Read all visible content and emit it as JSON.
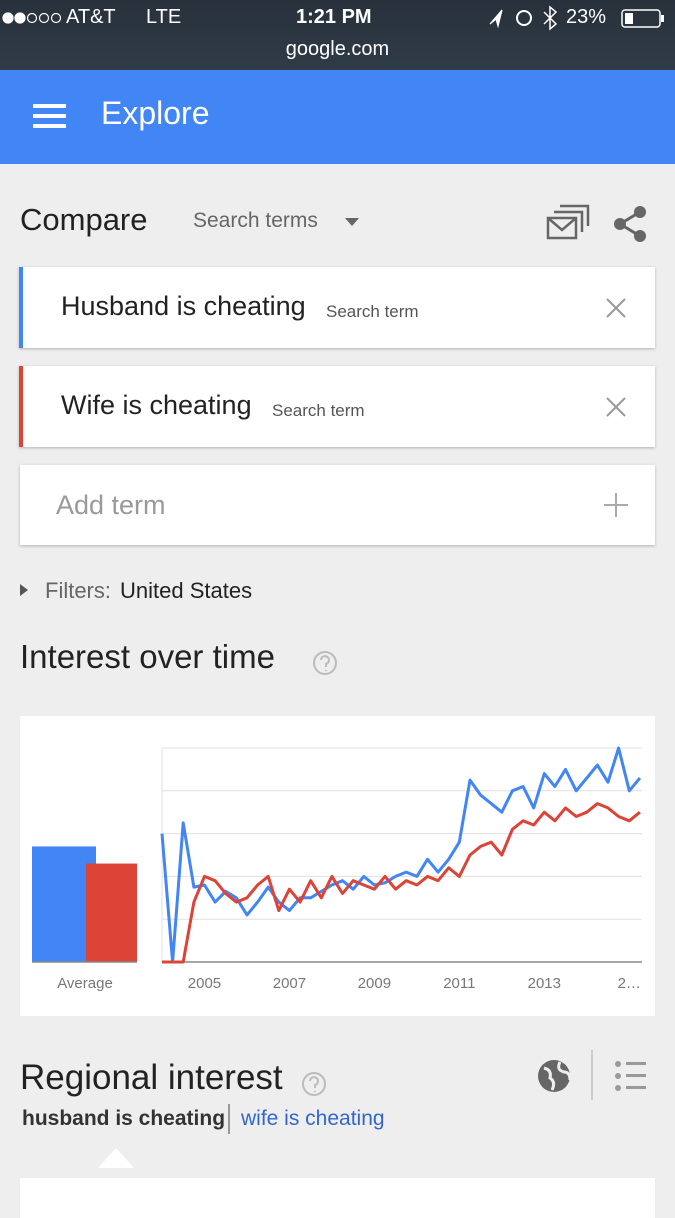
{
  "status_bar": {
    "carrier": "AT&T",
    "network": "LTE",
    "time": "1:21 PM",
    "battery": "23%",
    "url": "google.com"
  },
  "app_bar": {
    "title": "Explore"
  },
  "compare": {
    "title": "Compare",
    "dropdown": "Search terms",
    "terms": [
      {
        "label": "Husband is cheating",
        "hint": "Search term",
        "color": "#4285f4"
      },
      {
        "label": "Wife is cheating",
        "hint": "Search term",
        "color": "#db4437"
      }
    ],
    "add_term": "Add term"
  },
  "filters": {
    "label": "Filters:",
    "value": "United States"
  },
  "interest": {
    "title": "Interest over time"
  },
  "chart_data": {
    "type": "line",
    "average_label": "Average",
    "averages": [
      54,
      46
    ],
    "x": [
      2004.0,
      2004.25,
      2004.5,
      2004.75,
      2005.0,
      2005.25,
      2005.5,
      2005.75,
      2006.0,
      2006.25,
      2006.5,
      2006.75,
      2007.0,
      2007.25,
      2007.5,
      2007.75,
      2008.0,
      2008.25,
      2008.5,
      2008.75,
      2009.0,
      2009.25,
      2009.5,
      2009.75,
      2010.0,
      2010.25,
      2010.5,
      2010.75,
      2011.0,
      2011.25,
      2011.5,
      2011.75,
      2012.0,
      2012.25,
      2012.5,
      2012.75,
      2013.0,
      2013.25,
      2013.5,
      2013.75,
      2014.0,
      2014.25,
      2014.5,
      2014.75,
      2015.0,
      2015.25
    ],
    "series": [
      {
        "name": "Husband is cheating",
        "color": "#4285f4",
        "values": [
          60,
          0,
          65,
          35,
          36,
          28,
          33,
          30,
          22,
          28,
          35,
          28,
          24,
          30,
          30,
          33,
          36,
          38,
          34,
          40,
          36,
          37,
          40,
          42,
          40,
          48,
          42,
          48,
          56,
          85,
          78,
          74,
          70,
          80,
          82,
          72,
          88,
          82,
          90,
          80,
          86,
          92,
          84,
          100,
          80,
          86
        ]
      },
      {
        "name": "Wife is cheating",
        "color": "#db4437",
        "values": [
          0,
          0,
          0,
          28,
          40,
          38,
          32,
          28,
          30,
          36,
          40,
          24,
          34,
          28,
          38,
          30,
          40,
          32,
          38,
          36,
          34,
          40,
          34,
          38,
          36,
          40,
          38,
          44,
          40,
          50,
          54,
          56,
          50,
          62,
          66,
          64,
          70,
          66,
          72,
          68,
          70,
          74,
          72,
          68,
          66,
          70
        ]
      }
    ],
    "xlim": [
      2004,
      2015.3
    ],
    "xticks": [
      2005,
      2007,
      2009,
      2011,
      2013,
      {
        "value": 2015,
        "label": "2…"
      }
    ],
    "ylim": [
      0,
      100
    ],
    "yticks": [
      0,
      20,
      40,
      60,
      80,
      100
    ],
    "grid": true
  },
  "regional": {
    "title": "Regional interest",
    "tabs": [
      "husband is cheating",
      "wife is cheating"
    ]
  }
}
